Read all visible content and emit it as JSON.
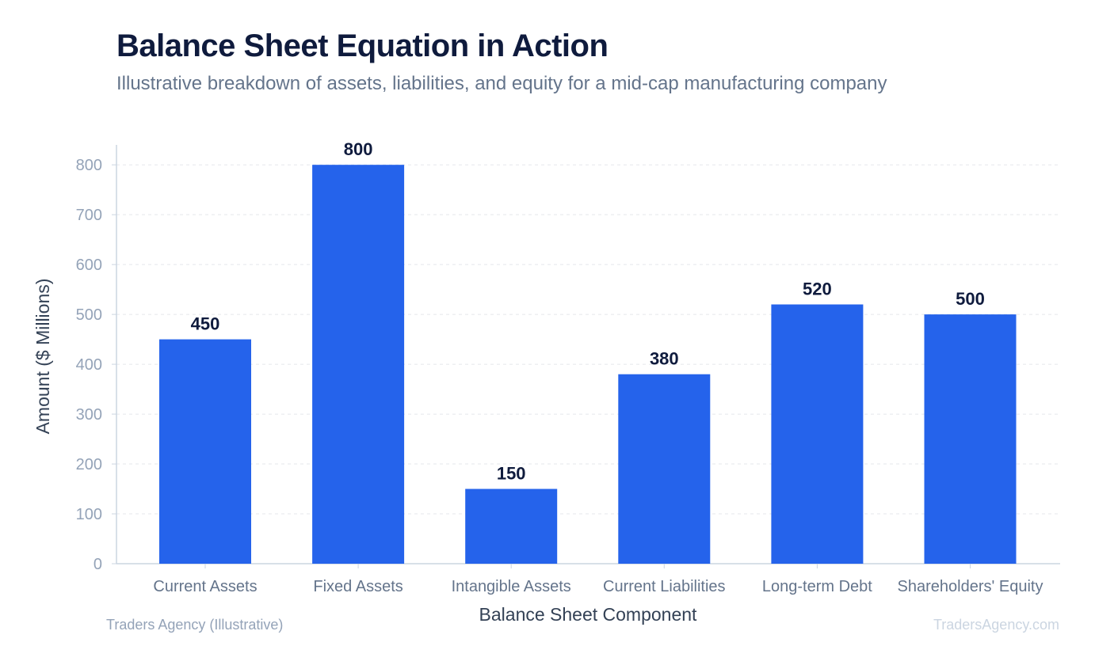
{
  "header": {
    "title": "Balance Sheet Equation in Action",
    "subtitle": "Illustrative breakdown of assets, liabilities, and equity for a mid-cap manufacturing company"
  },
  "footer": {
    "source": "Traders Agency (Illustrative)",
    "watermark": "TradersAgency.com"
  },
  "chart_data": {
    "type": "bar",
    "title": "Balance Sheet Equation in Action",
    "subtitle": "Illustrative breakdown of assets, liabilities, and equity for a mid-cap manufacturing company",
    "categories": [
      "Current Assets",
      "Fixed Assets",
      "Intangible Assets",
      "Current Liabilities",
      "Long-term Debt",
      "Shareholders' Equity"
    ],
    "values": [
      450,
      800,
      150,
      380,
      520,
      500
    ],
    "xlabel": "Balance Sheet Component",
    "ylabel": "Amount ($ Millions)",
    "ylim": [
      0,
      840
    ],
    "yticks": [
      0,
      100,
      200,
      300,
      400,
      500,
      600,
      700,
      800
    ],
    "grid": true,
    "legend": "none",
    "bar_color": "#2563eb"
  }
}
